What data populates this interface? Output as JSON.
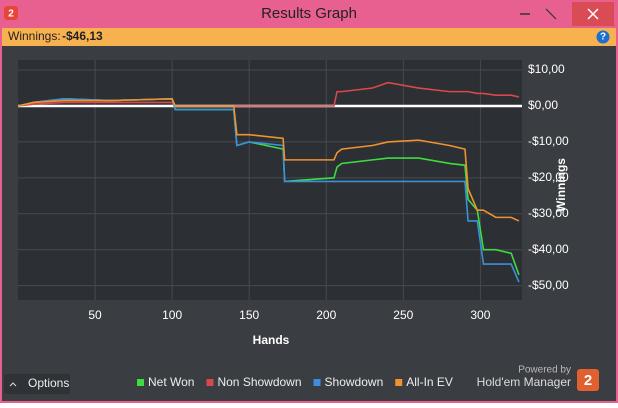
{
  "window": {
    "title": "Results Graph",
    "app_icon": "2"
  },
  "winnings": {
    "label": "Winnings:",
    "value": "-$46,13",
    "help_icon": "?"
  },
  "footer": {
    "options": "Options",
    "powered_by": "Powered by",
    "brand": "Hold'em Manager",
    "brand_icon": "2"
  },
  "chart_data": {
    "type": "line",
    "x_label": "Hands",
    "y_label": "Winnings",
    "x": [
      0,
      10,
      30,
      60,
      100,
      102,
      140,
      142,
      150,
      172,
      173,
      205,
      207,
      210,
      230,
      240,
      260,
      280,
      290,
      292,
      298,
      302,
      310,
      320,
      325
    ],
    "series": [
      {
        "name": "Net Won",
        "color": "#3fdc3f",
        "values": [
          0,
          1,
          2,
          1.5,
          2,
          -1,
          -1,
          -11,
          -10,
          -12,
          -21,
          -20,
          -17,
          -16,
          -15,
          -14.5,
          -14.5,
          -16,
          -16.5,
          -26,
          -29,
          -40,
          -40,
          -41,
          -47
        ]
      },
      {
        "name": "Non Showdown",
        "color": "#d9484a",
        "values": [
          0,
          0.5,
          1,
          1,
          1,
          0,
          0,
          0,
          0,
          0,
          0,
          0,
          4,
          4,
          5,
          6.5,
          5,
          4,
          4,
          4,
          3.5,
          3.5,
          3,
          3,
          2.5
        ]
      },
      {
        "name": "Showdown",
        "color": "#3b8fdc",
        "values": [
          0,
          1,
          2,
          1.5,
          2,
          -1,
          -1,
          -11,
          -10,
          -11,
          -21,
          -21,
          -21,
          -21,
          -21,
          -21,
          -21,
          -21,
          -21,
          -32,
          -32,
          -44,
          -44,
          -44,
          -49
        ]
      },
      {
        "name": "All-In EV",
        "color": "#f0922e",
        "values": [
          0,
          1,
          1.5,
          1.5,
          2,
          0,
          0,
          -8,
          -8,
          -9,
          -15,
          -15,
          -13,
          -12,
          -11,
          -10,
          -9.5,
          -11,
          -12,
          -23,
          -29,
          -29,
          -31,
          -31,
          -32
        ]
      }
    ],
    "xlim": [
      0,
      327
    ],
    "xticks": [
      50,
      100,
      150,
      200,
      250,
      300
    ],
    "ylim": [
      -54,
      12.8
    ],
    "yticks": [
      {
        "value": 10,
        "label": "$10,00"
      },
      {
        "value": 0,
        "label": "$0,00"
      },
      {
        "value": -10,
        "label": "-$10,00"
      },
      {
        "value": -20,
        "label": "-$20,00"
      },
      {
        "value": -30,
        "label": "-$30,00"
      },
      {
        "value": -40,
        "label": "-$40,00"
      },
      {
        "value": -50,
        "label": "-$50,00"
      }
    ],
    "grid": true
  }
}
